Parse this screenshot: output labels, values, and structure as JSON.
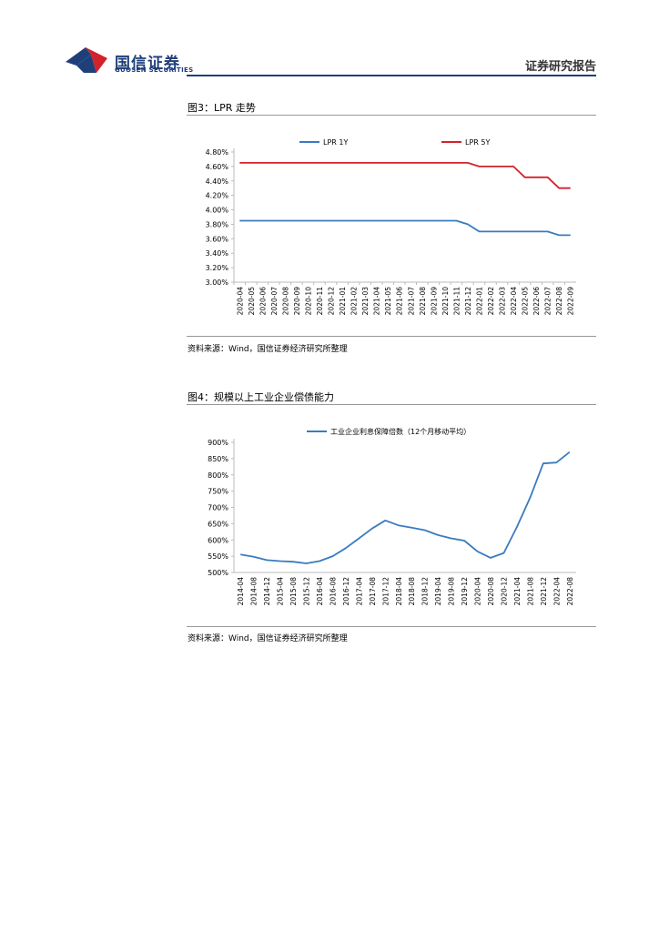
{
  "header": {
    "brand_cn": "国信证券",
    "brand_en": "GUOSEN SECURITIES",
    "report_type": "证券研究报告",
    "colors": {
      "brand_blue": "#1f3f7a",
      "brand_red": "#d2232a"
    }
  },
  "figures": [
    {
      "title": "图3：LPR 走势",
      "source": "资料来源：Wind，国信证券经济研究所整理"
    },
    {
      "title": "图4：规模以上工业企业偿债能力",
      "source": "资料来源：Wind，国信证券经济研究所整理"
    }
  ],
  "chart_data": [
    {
      "type": "line",
      "title": "",
      "xlabel": "",
      "ylabel": "",
      "legend_position": "top",
      "y_format": "percent",
      "ylim": [
        3.0,
        4.8
      ],
      "yticks": [
        3.0,
        3.2,
        3.4,
        3.6,
        3.8,
        4.0,
        4.2,
        4.4,
        4.6,
        4.8
      ],
      "ytick_labels": [
        "3.00%",
        "3.20%",
        "3.40%",
        "3.60%",
        "3.80%",
        "4.00%",
        "4.20%",
        "4.40%",
        "4.60%",
        "4.80%"
      ],
      "categories": [
        "2020-04",
        "2020-05",
        "2020-06",
        "2020-07",
        "2020-08",
        "2020-09",
        "2020-10",
        "2020-11",
        "2020-12",
        "2021-01",
        "2021-02",
        "2021-03",
        "2021-04",
        "2021-05",
        "2021-06",
        "2021-07",
        "2021-08",
        "2021-09",
        "2021-10",
        "2021-11",
        "2021-12",
        "2022-01",
        "2022-02",
        "2022-03",
        "2022-04",
        "2022-05",
        "2022-06",
        "2022-07",
        "2022-08",
        "2022-09"
      ],
      "series": [
        {
          "name": "LPR 1Y",
          "color": "#3a7bbf",
          "values": [
            3.85,
            3.85,
            3.85,
            3.85,
            3.85,
            3.85,
            3.85,
            3.85,
            3.85,
            3.85,
            3.85,
            3.85,
            3.85,
            3.85,
            3.85,
            3.85,
            3.85,
            3.85,
            3.85,
            3.85,
            3.8,
            3.7,
            3.7,
            3.7,
            3.7,
            3.7,
            3.7,
            3.7,
            3.65,
            3.65
          ]
        },
        {
          "name": "LPR 5Y",
          "color": "#d2232a",
          "values": [
            4.65,
            4.65,
            4.65,
            4.65,
            4.65,
            4.65,
            4.65,
            4.65,
            4.65,
            4.65,
            4.65,
            4.65,
            4.65,
            4.65,
            4.65,
            4.65,
            4.65,
            4.65,
            4.65,
            4.65,
            4.65,
            4.6,
            4.6,
            4.6,
            4.6,
            4.45,
            4.45,
            4.45,
            4.3,
            4.3
          ]
        }
      ]
    },
    {
      "type": "line",
      "title": "",
      "xlabel": "",
      "ylabel": "",
      "legend_position": "top",
      "ylim": [
        500,
        900
      ],
      "yticks": [
        500,
        550,
        600,
        650,
        700,
        750,
        800,
        850,
        900
      ],
      "ytick_labels": [
        "500%",
        "550%",
        "600%",
        "650%",
        "700%",
        "750%",
        "800%",
        "850%",
        "900%"
      ],
      "categories": [
        "2014-04",
        "2014-08",
        "2014-12",
        "2015-04",
        "2015-08",
        "2015-12",
        "2016-04",
        "2016-08",
        "2016-12",
        "2017-04",
        "2017-08",
        "2017-12",
        "2018-04",
        "2018-08",
        "2018-12",
        "2019-04",
        "2019-08",
        "2019-12",
        "2020-04",
        "2020-08",
        "2020-12",
        "2021-04",
        "2021-08",
        "2021-12",
        "2022-04",
        "2022-08"
      ],
      "series": [
        {
          "name": "工业企业利息保障倍数（12个月移动平均）",
          "color": "#3a7bbf",
          "values": [
            555,
            548,
            538,
            535,
            533,
            528,
            535,
            550,
            575,
            605,
            635,
            660,
            645,
            638,
            630,
            615,
            605,
            598,
            565,
            545,
            560,
            640,
            730,
            835,
            838,
            870
          ]
        }
      ]
    }
  ]
}
